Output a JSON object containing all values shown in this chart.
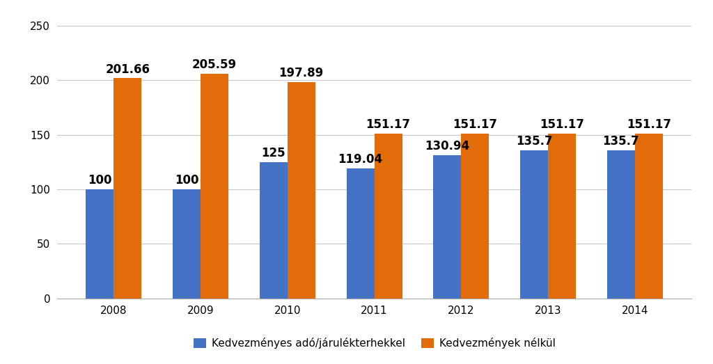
{
  "years": [
    "2008",
    "2009",
    "2010",
    "2011",
    "2012",
    "2013",
    "2014"
  ],
  "blue_values": [
    100,
    100,
    125,
    119.04,
    130.94,
    135.7,
    135.7
  ],
  "orange_values": [
    201.66,
    205.59,
    197.89,
    151.17,
    151.17,
    151.17,
    151.17
  ],
  "blue_labels": [
    "100",
    "100",
    "125",
    "119.04",
    "130.94",
    "135.7",
    "135.7"
  ],
  "orange_labels": [
    "201.66",
    "205.59",
    "197.89",
    "151.17",
    "151.17",
    "151.17",
    "151.17"
  ],
  "blue_color": "#4472C4",
  "orange_color": "#E36C0A",
  "legend_blue": "Kedvezményes adó/járulékterhekkel",
  "legend_orange": "Kedvezmények nélkül",
  "ylim": [
    0,
    250
  ],
  "yticks": [
    0,
    50,
    100,
    150,
    200,
    250
  ],
  "bg_color": "#FFFFFF",
  "grid_color": "#C8C8C8",
  "bar_width": 0.32,
  "label_fontsize": 12,
  "tick_fontsize": 11,
  "legend_fontsize": 11
}
